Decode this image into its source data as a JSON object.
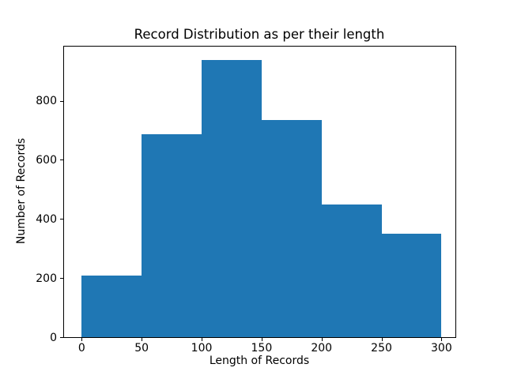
{
  "chart_data": {
    "type": "bar",
    "subtype": "histogram",
    "title": "Record Distribution as per their length",
    "xlabel": "Length of Records",
    "ylabel": "Number of Records",
    "bar_color": "#1f77b4",
    "bin_edges": [
      0,
      50,
      100,
      150,
      200,
      250,
      300
    ],
    "values": [
      208,
      688,
      938,
      734,
      448,
      350
    ],
    "xticks": [
      "0",
      "50",
      "100",
      "150",
      "200",
      "250",
      "300"
    ],
    "xtick_values": [
      0,
      50,
      100,
      150,
      200,
      250,
      300
    ],
    "yticks": [
      "0",
      "200",
      "400",
      "600",
      "800"
    ],
    "ytick_values": [
      0,
      200,
      400,
      600,
      800
    ],
    "xlim": [
      -15.4,
      311.8
    ],
    "ylim": [
      0,
      986
    ],
    "grid": false,
    "legend": null
  }
}
